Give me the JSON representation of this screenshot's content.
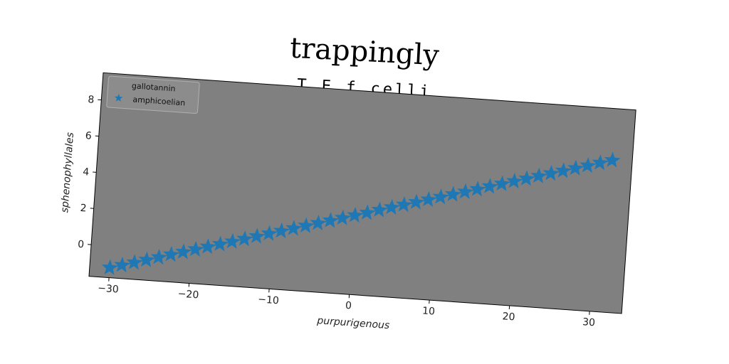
{
  "chart_data": {
    "type": "line",
    "title": "trappingly",
    "subtitle": "T E f celli",
    "xlabel": "purpurigenous",
    "ylabel": "sphenophyllales",
    "xlim": [
      -32.5,
      34
    ],
    "ylim": [
      -1.75,
      9.5
    ],
    "xticks": [
      -30,
      -20,
      -10,
      0,
      10,
      20,
      30
    ],
    "yticks": [
      0,
      2,
      4,
      6,
      8
    ],
    "grid": false,
    "legend": {
      "title": "gallotannin",
      "placement": "top-left"
    },
    "series": [
      {
        "name": "amphicoelian",
        "marker": "star",
        "color": "#1f77b4",
        "x": [
          -30.0,
          -28.5,
          -27.0,
          -25.5,
          -24.0,
          -22.5,
          -21.0,
          -19.5,
          -18.0,
          -16.5,
          -15.0,
          -13.5,
          -12.0,
          -10.5,
          -9.0,
          -7.5,
          -6.0,
          -4.5,
          -3.0,
          -1.5,
          0.0,
          1.5,
          3.0,
          4.5,
          6.0,
          7.5,
          9.0,
          10.5,
          12.0,
          13.5,
          15.0,
          16.5,
          18.0,
          19.5,
          21.0,
          22.5,
          24.0,
          25.5,
          27.0,
          28.5,
          30.0,
          31.5
        ],
        "y": [
          -1.2,
          -1.01,
          -0.82,
          -0.63,
          -0.44,
          -0.24,
          -0.05,
          0.14,
          0.33,
          0.52,
          0.71,
          0.9,
          1.09,
          1.29,
          1.48,
          1.67,
          1.86,
          2.05,
          2.24,
          2.43,
          2.62,
          2.81,
          3.01,
          3.2,
          3.39,
          3.58,
          3.77,
          3.96,
          4.15,
          4.34,
          4.53,
          4.73,
          4.92,
          5.11,
          5.3,
          5.49,
          5.68,
          5.87,
          6.06,
          6.25,
          6.45,
          6.64
        ]
      }
    ]
  },
  "colors": {
    "plot_background": "#808080",
    "marker": "#1f77b4"
  }
}
